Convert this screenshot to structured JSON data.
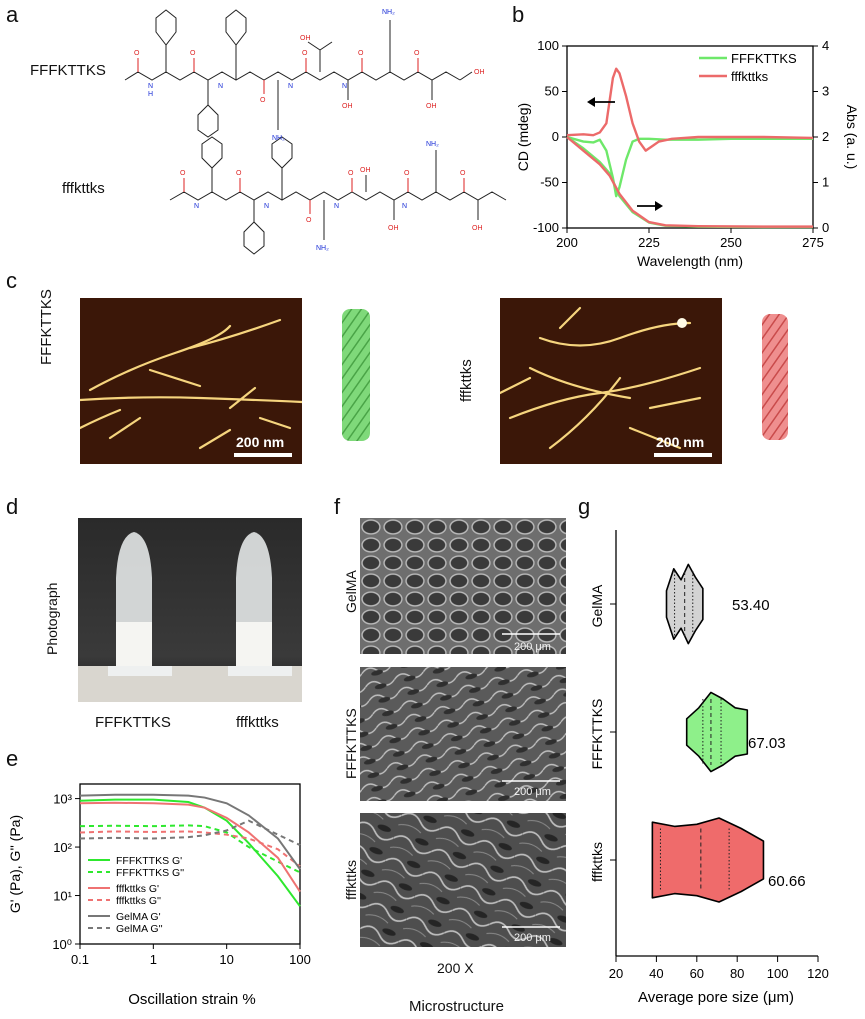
{
  "panels": {
    "a": "a",
    "b": "b",
    "c": "c",
    "d": "d",
    "e": "e",
    "f": "f",
    "g": "g"
  },
  "panel_a": {
    "label1": "FFFKTTKS",
    "label2": "fffkttks",
    "atoms": {
      "N": "N",
      "H": "H",
      "O": "O",
      "OH": "OH",
      "NH2": "NH₂",
      "H2N": "H₂N"
    }
  },
  "colors": {
    "green": "#6ee86a",
    "red": "#ec6a6a",
    "gray": "#777777",
    "afm_bg": "#3a1a0a"
  },
  "panel_b": {
    "chart_data": {
      "type": "line",
      "title": "",
      "xlabel": "Wavelength (nm)",
      "ylabel": "CD (mdeg)",
      "y2label": "Abs (a. u.)",
      "xlim": [
        200,
        275
      ],
      "ylim": [
        -100,
        100
      ],
      "y2lim": [
        0,
        4
      ],
      "xticks": [
        "200",
        "225",
        "250",
        "275"
      ],
      "yticks": [
        "100",
        "50",
        "0",
        "-50",
        "-100"
      ],
      "y2ticks": [
        "4",
        "3",
        "2",
        "1",
        "0"
      ],
      "legend": [
        "FFFKTTKS",
        "fffkttks"
      ],
      "series": [
        {
          "name": "FFFKTTKS CD",
          "x": [
            200,
            205,
            208,
            210,
            212,
            214,
            215,
            216,
            218,
            220,
            222,
            225,
            230,
            240,
            250,
            260,
            275
          ],
          "y": [
            0,
            -5,
            -6,
            -3,
            -15,
            -45,
            -65,
            -55,
            -25,
            -5,
            -2,
            -2,
            -3,
            -3,
            -2,
            -2,
            -2
          ]
        },
        {
          "name": "fffkttks CD",
          "x": [
            200,
            205,
            208,
            210,
            212,
            213,
            214,
            215,
            216,
            218,
            220,
            222,
            224,
            226,
            228,
            232,
            240,
            260,
            275
          ],
          "y": [
            2,
            3,
            2,
            5,
            15,
            40,
            65,
            75,
            70,
            45,
            15,
            -5,
            -15,
            -10,
            -5,
            -2,
            0,
            0,
            -1
          ]
        },
        {
          "name": "FFFKTTKS Abs",
          "x": [
            200,
            205,
            210,
            213,
            216,
            220,
            225,
            230,
            240,
            260,
            275
          ],
          "y": [
            2.0,
            1.75,
            1.45,
            1.2,
            0.7,
            0.35,
            0.12,
            0.05,
            0.03,
            0.02,
            0.02
          ]
        },
        {
          "name": "fffkttks Abs",
          "x": [
            200,
            205,
            210,
            213,
            216,
            220,
            225,
            230,
            240,
            260,
            275
          ],
          "y": [
            2.0,
            1.7,
            1.4,
            1.15,
            0.75,
            0.38,
            0.13,
            0.06,
            0.04,
            0.03,
            0.03
          ]
        }
      ]
    }
  },
  "panel_c": {
    "left_label": "FFFKTTKS",
    "right_label": "fffkttks",
    "scale_left": "200 nm",
    "scale_right": "200 nm"
  },
  "panel_d": {
    "ylabel": "Photograph",
    "tube1": "FFFKTTKS",
    "tube2": "fffkttks"
  },
  "panel_e": {
    "chart_data": {
      "type": "line",
      "xlabel": "Oscillation strain %",
      "ylabel": "G' (Pa), G'' (Pa)",
      "xscale": "log",
      "yscale": "log",
      "xlim": [
        0.1,
        100
      ],
      "ylim": [
        1,
        2000
      ],
      "xticks": [
        "0.1",
        "1",
        "10",
        "100"
      ],
      "yticks": [
        "10³",
        "10²",
        "10¹",
        "10⁰"
      ],
      "legend_position": "bottom-left",
      "series": [
        {
          "name": "FFFKTTKS G'",
          "style": "solid",
          "color": "#2ee82e",
          "x": [
            0.1,
            0.3,
            1,
            3,
            5,
            10,
            20,
            50,
            100
          ],
          "y": [
            900,
            950,
            950,
            850,
            650,
            350,
            120,
            25,
            6
          ]
        },
        {
          "name": "FFFKTTKS G''",
          "style": "dashed",
          "color": "#2ee82e",
          "x": [
            0.1,
            0.3,
            1,
            3,
            5,
            10,
            20,
            50,
            100
          ],
          "y": [
            270,
            275,
            270,
            280,
            270,
            200,
            100,
            50,
            30
          ]
        },
        {
          "name": "fffkttks G'",
          "style": "solid",
          "color": "#ef7272",
          "x": [
            0.1,
            0.3,
            1,
            3,
            5,
            10,
            20,
            50,
            100
          ],
          "y": [
            800,
            820,
            800,
            750,
            650,
            400,
            200,
            60,
            12
          ]
        },
        {
          "name": "fffkttks G''",
          "style": "dashed",
          "color": "#ef7272",
          "x": [
            0.1,
            0.3,
            1,
            3,
            5,
            10,
            20,
            50,
            100
          ],
          "y": [
            200,
            210,
            205,
            210,
            200,
            180,
            150,
            90,
            40
          ]
        },
        {
          "name": "GelMA G'",
          "style": "solid",
          "color": "#777777",
          "x": [
            0.1,
            0.3,
            1,
            3,
            5,
            10,
            20,
            50,
            100
          ],
          "y": [
            1150,
            1200,
            1200,
            1150,
            1050,
            800,
            450,
            150,
            35
          ]
        },
        {
          "name": "GelMA G''",
          "style": "dashed",
          "color": "#777777",
          "x": [
            0.1,
            0.3,
            1,
            3,
            5,
            10,
            20,
            50,
            100
          ],
          "y": [
            150,
            155,
            150,
            160,
            175,
            220,
            350,
            180,
            110
          ]
        }
      ]
    }
  },
  "panel_f": {
    "rows": [
      "GelMA",
      "FFFKTTKS",
      "fffkttks"
    ],
    "scale": "200 μm",
    "magnification": "200 X",
    "xlabel": "Microstructure"
  },
  "panel_g": {
    "chart_data": {
      "type": "violin",
      "xlabel": "Average pore size (μm)",
      "xlim": [
        20,
        120
      ],
      "xticks": [
        "20",
        "40",
        "60",
        "80",
        "100",
        "120"
      ],
      "categories": [
        "GelMA",
        "FFFKTTKS",
        "fffkttks"
      ],
      "means": [
        53.4,
        67.03,
        60.66
      ],
      "mean_labels": [
        "53.40",
        "67.03",
        "60.66"
      ],
      "ranges": [
        [
          45,
          63
        ],
        [
          55,
          85
        ],
        [
          38,
          93
        ]
      ],
      "quartiles": [
        [
          49,
          54,
          58
        ],
        [
          63,
          67,
          72
        ],
        [
          42,
          62,
          76
        ]
      ],
      "colors": [
        "#d3d3d3",
        "#8ef08a",
        "#ef6b6b"
      ]
    }
  }
}
